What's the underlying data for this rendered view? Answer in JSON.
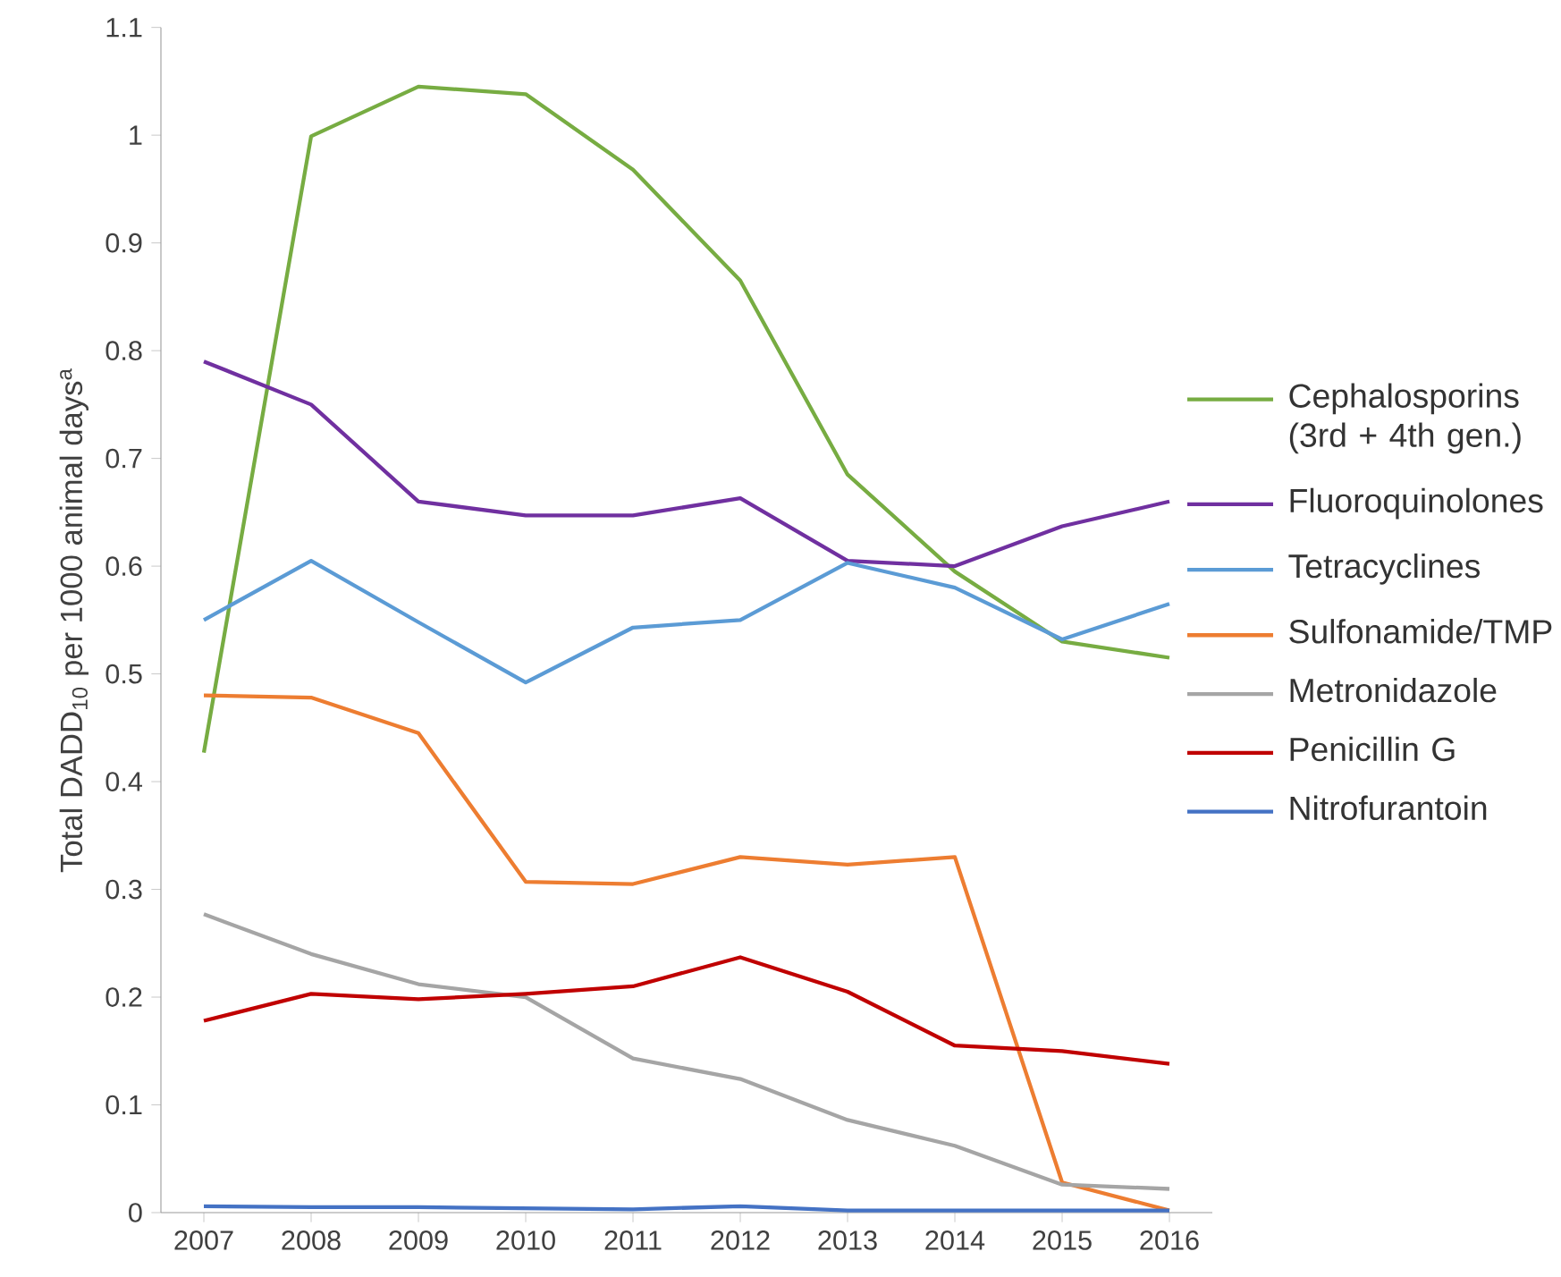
{
  "chart_data": {
    "type": "line",
    "ylabel": "Total DADD$_{10}$ per 1000 animal days$^{a}$",
    "categories": [
      "2007",
      "2008",
      "2009",
      "2010",
      "2011",
      "2012",
      "2013",
      "2014",
      "2015",
      "2016"
    ],
    "ylim": [
      0,
      1.1
    ],
    "yticks": [
      0,
      0.1,
      0.2,
      0.3,
      0.4,
      0.5,
      0.6,
      0.7,
      0.8,
      0.9,
      1,
      1.1
    ],
    "grid": false,
    "legend": "right",
    "marker": "none",
    "line_style": "solid",
    "series": [
      {
        "name": "Cephalosporins (3rd + 4th gen.)",
        "color": "#77ac42",
        "values": [
          0.427,
          0.999,
          1.045,
          1.038,
          0.968,
          0.865,
          0.685,
          0.595,
          0.53,
          0.515
        ]
      },
      {
        "name": "Fluoroquinolones",
        "color": "#7030a0",
        "values": [
          0.79,
          0.75,
          0.66,
          0.647,
          0.647,
          0.663,
          0.605,
          0.6,
          0.637,
          0.66
        ]
      },
      {
        "name": "Tetracyclines",
        "color": "#5b9bd5",
        "values": [
          0.55,
          0.605,
          0.548,
          0.492,
          0.543,
          0.55,
          0.603,
          0.58,
          0.532,
          0.565
        ]
      },
      {
        "name": "Sulfonamide/TMP",
        "color": "#ed7d31",
        "values": [
          0.48,
          0.478,
          0.445,
          0.307,
          0.305,
          0.33,
          0.323,
          0.33,
          0.028,
          0.002
        ]
      },
      {
        "name": "Metronidazole",
        "color": "#a5a5a5",
        "values": [
          0.277,
          0.24,
          0.212,
          0.2,
          0.143,
          0.124,
          0.086,
          0.062,
          0.026,
          0.022
        ]
      },
      {
        "name": "Penicillin G",
        "color": "#c00000",
        "values": [
          0.178,
          0.203,
          0.198,
          0.203,
          0.21,
          0.237,
          0.205,
          0.155,
          0.15,
          0.138
        ]
      },
      {
        "name": "Nitrofurantoin",
        "color": "#4472c4",
        "values": [
          0.006,
          0.005,
          0.005,
          0.004,
          0.003,
          0.006,
          0.002,
          0.002,
          0.002,
          0.002
        ]
      }
    ]
  }
}
